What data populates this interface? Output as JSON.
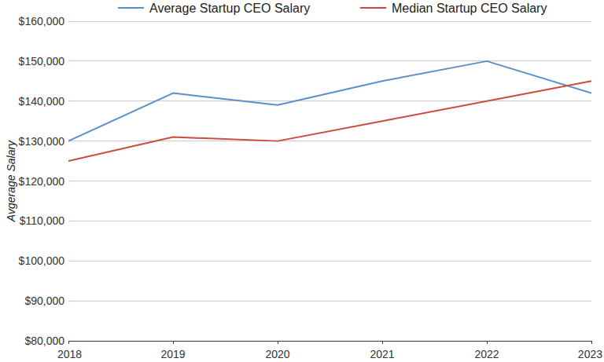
{
  "chart_data": {
    "type": "line",
    "y_label": "Avgerage Salary",
    "x": [
      2018,
      2019,
      2020,
      2021,
      2022,
      2023
    ],
    "series": [
      {
        "name": "Average Startup CEO Salary",
        "color": "#5b8fc7",
        "values": [
          130000,
          142000,
          139000,
          145000,
          150000,
          142000
        ]
      },
      {
        "name": "Median Startup CEO Salary",
        "color": "#cc4b3c",
        "values": [
          125000,
          131000,
          130000,
          135000,
          140000,
          145000
        ]
      }
    ],
    "xlim": [
      2018,
      2023
    ],
    "xticks": [
      2018,
      2019,
      2020,
      2021,
      2022,
      2023
    ],
    "ylim": [
      80000,
      160000
    ],
    "yticks": [
      {
        "value": 80000,
        "label": "$80,000"
      },
      {
        "value": 90000,
        "label": "$90,000"
      },
      {
        "value": 100000,
        "label": "$100,000"
      },
      {
        "value": 110000,
        "label": "$110,000"
      },
      {
        "value": 120000,
        "label": "$120,000"
      },
      {
        "value": 130000,
        "label": "$130,000"
      },
      {
        "value": 140000,
        "label": "$140,000"
      },
      {
        "value": 150000,
        "label": "$150,000"
      },
      {
        "value": 160000,
        "label": "$160,000"
      }
    ],
    "grid": true,
    "legend": "top"
  }
}
